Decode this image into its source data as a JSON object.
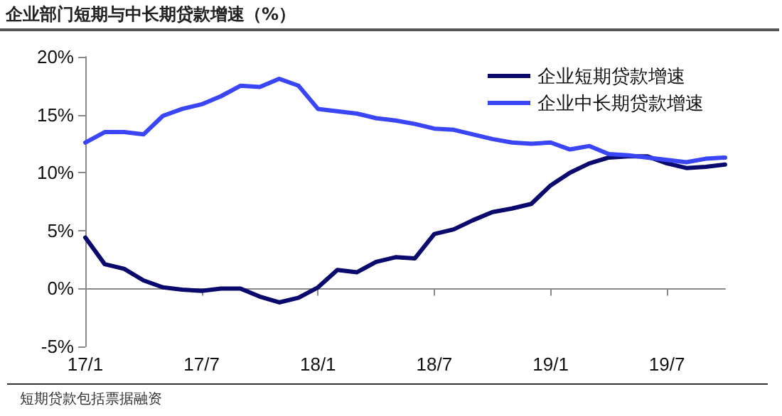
{
  "chart_data": {
    "type": "line",
    "title": "企业部门短期与中长期贷款增速（%）",
    "categories": [
      "17/1",
      null,
      null,
      null,
      null,
      null,
      "17/7",
      null,
      null,
      null,
      null,
      null,
      "18/1",
      null,
      null,
      null,
      null,
      null,
      "18/7",
      null,
      null,
      null,
      null,
      null,
      "19/1",
      null,
      null,
      null,
      null,
      null,
      "19/7",
      null,
      null,
      null
    ],
    "series": [
      {
        "name": "企业短期贷款增速",
        "color": "#0a0a6e",
        "values": [
          4.4,
          2.1,
          1.7,
          0.7,
          0.1,
          -0.1,
          -0.2,
          0,
          0,
          -0.7,
          -1.2,
          -0.8,
          0.1,
          1.6,
          1.4,
          2.3,
          2.7,
          2.6,
          4.7,
          5.1,
          5.9,
          6.6,
          6.9,
          7.3,
          8.9,
          10.0,
          10.8,
          11.3,
          11.4,
          11.4,
          10.8,
          10.4,
          10.5,
          10.7
        ]
      },
      {
        "name": "企业中长期贷款增速",
        "color": "#3a45f5",
        "values": [
          12.6,
          13.5,
          13.5,
          13.3,
          14.9,
          15.5,
          15.9,
          16.6,
          17.5,
          17.4,
          18.1,
          17.5,
          15.5,
          15.3,
          15.1,
          14.7,
          14.5,
          14.2,
          13.8,
          13.7,
          13.3,
          12.9,
          12.6,
          12.5,
          12.6,
          12.0,
          12.3,
          11.6,
          11.5,
          11.3,
          11.1,
          10.9,
          11.2,
          11.3
        ]
      }
    ],
    "ylim": [
      -5,
      20
    ],
    "yticks": [
      {
        "value": -5,
        "label": "-5%"
      },
      {
        "value": 0,
        "label": "0%"
      },
      {
        "value": 5,
        "label": "5%"
      },
      {
        "value": 10,
        "label": "10%"
      },
      {
        "value": 15,
        "label": "15%"
      },
      {
        "value": 20,
        "label": "20%"
      }
    ],
    "legend": "top right",
    "marker": "none",
    "line_style": "solid",
    "annotations": [
      "短期贷款包括票据融资"
    ]
  }
}
